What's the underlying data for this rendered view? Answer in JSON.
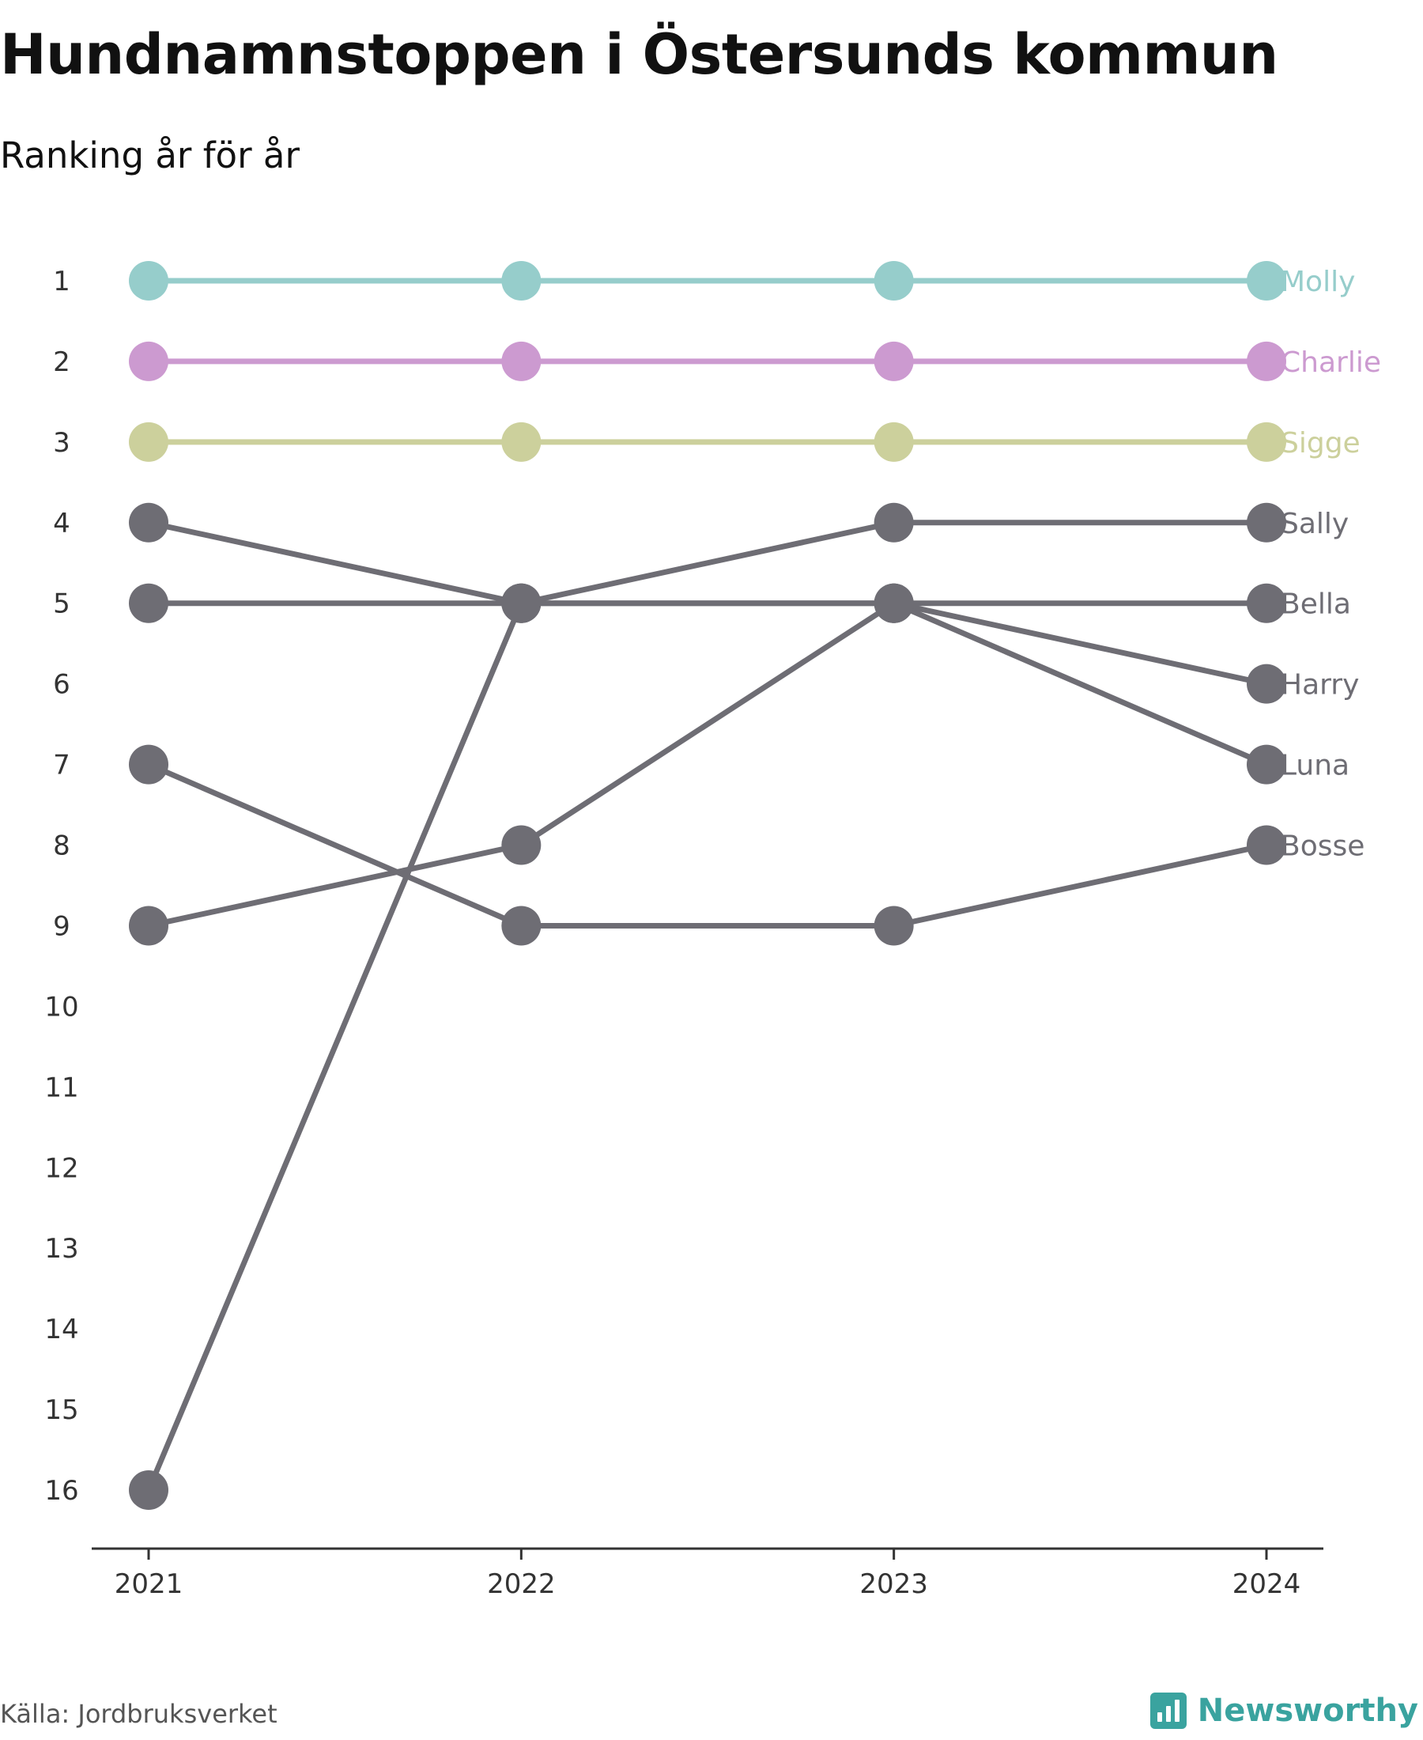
{
  "title": "Hundnamnstoppen i Östersunds kommun",
  "subtitle": "Ranking år för år",
  "source": "Källa: Jordbruksverket",
  "brand": "Newsworthy",
  "colors": {
    "molly": "#96cdcb",
    "charlie": "#cc9ad0",
    "sigge": "#ccd09c",
    "gray": "#6e6d74",
    "brand": "#3aa39f"
  },
  "chart_data": {
    "type": "line",
    "title": "Hundnamnstoppen i Östersunds kommun",
    "subtitle": "Ranking år för år",
    "x": [
      "2021",
      "2022",
      "2023",
      "2024"
    ],
    "y_ticks": [
      "1",
      "2",
      "3",
      "4",
      "5",
      "6",
      "7",
      "8",
      "9",
      "10",
      "11",
      "12",
      "13",
      "14",
      "15",
      "16"
    ],
    "ylim": [
      1,
      16
    ],
    "y_reversed": true,
    "grid": false,
    "legend": "end-labels-right",
    "series": [
      {
        "name": "Molly",
        "values": [
          1,
          1,
          1,
          1
        ],
        "color": "#96cdcb"
      },
      {
        "name": "Charlie",
        "values": [
          2,
          2,
          2,
          2
        ],
        "color": "#cc9ad0"
      },
      {
        "name": "Sigge",
        "values": [
          3,
          3,
          3,
          3
        ],
        "color": "#ccd09c"
      },
      {
        "name": "Sally",
        "values": [
          16,
          5,
          4,
          4
        ],
        "color": "#6e6d74"
      },
      {
        "name": "Bella",
        "values": [
          5,
          5,
          5,
          5
        ],
        "color": "#6e6d74"
      },
      {
        "name": "Harry",
        "values": [
          9,
          8,
          5,
          6
        ],
        "color": "#6e6d74"
      },
      {
        "name": "Luna",
        "values": [
          4,
          5,
          5,
          7
        ],
        "color": "#6e6d74"
      },
      {
        "name": "Bosse",
        "values": [
          7,
          9,
          9,
          8
        ],
        "color": "#6e6d74"
      }
    ]
  }
}
